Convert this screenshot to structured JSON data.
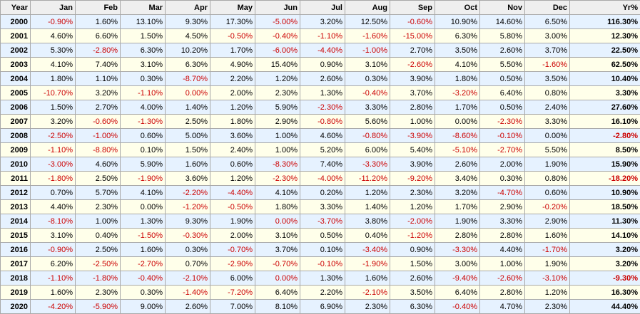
{
  "colors": {
    "negative": "#cc0000",
    "positive": "#000000",
    "row_blue": "#e6f2ff",
    "row_cream": "#ffffea",
    "header": "#efefef"
  },
  "headers": [
    "Year",
    "Jan",
    "Feb",
    "Mar",
    "Apr",
    "May",
    "Jun",
    "Jul",
    "Aug",
    "Sep",
    "Oct",
    "Nov",
    "Dec",
    "Yr%"
  ],
  "rows": [
    {
      "year": "2000",
      "months": [
        "-0.90%",
        "1.60%",
        "13.10%",
        "9.30%",
        "17.30%",
        "-5.00%",
        "3.20%",
        "12.50%",
        "-0.60%",
        "10.90%",
        "14.60%",
        "6.50%"
      ],
      "ytd": "116.30%"
    },
    {
      "year": "2001",
      "months": [
        "4.60%",
        "6.60%",
        "1.50%",
        "4.50%",
        "-0.50%",
        "-0.40%",
        "-1.10%",
        "-1.60%",
        "-15.00%",
        "6.30%",
        "5.80%",
        "3.00%"
      ],
      "ytd": "12.30%"
    },
    {
      "year": "2002",
      "months": [
        "5.30%",
        "-2.80%",
        "6.30%",
        "10.20%",
        "1.70%",
        "-6.00%",
        "-4.40%",
        "-1.00%",
        "2.70%",
        "3.50%",
        "2.60%",
        "3.70%"
      ],
      "ytd": "22.50%"
    },
    {
      "year": "2003",
      "months": [
        "4.10%",
        "7.40%",
        "3.10%",
        "6.30%",
        "4.90%",
        "15.40%",
        "0.90%",
        "3.10%",
        "-2.60%",
        "4.10%",
        "5.50%",
        "-1.60%"
      ],
      "ytd": "62.50%"
    },
    {
      "year": "2004",
      "months": [
        "1.80%",
        "1.10%",
        "0.30%",
        "-8.70%",
        "2.20%",
        "1.20%",
        "2.60%",
        "0.30%",
        "3.90%",
        "1.80%",
        "0.50%",
        "3.50%"
      ],
      "ytd": "10.40%"
    },
    {
      "year": "2005",
      "months": [
        "-10.70%",
        "3.20%",
        "-1.10%",
        "0.00%",
        "2.00%",
        "2.30%",
        "1.30%",
        "-0.40%",
        "3.70%",
        "-3.20%",
        "6.40%",
        "0.80%"
      ],
      "ytd": "3.30%"
    },
    {
      "year": "2006",
      "months": [
        "1.50%",
        "2.70%",
        "4.00%",
        "1.40%",
        "1.20%",
        "5.90%",
        "-2.30%",
        "3.30%",
        "2.80%",
        "1.70%",
        "0.50%",
        "2.40%"
      ],
      "ytd": "27.60%"
    },
    {
      "year": "2007",
      "months": [
        "3.20%",
        "-0.60%",
        "-1.30%",
        "2.50%",
        "1.80%",
        "2.90%",
        "-0.80%",
        "5.60%",
        "1.00%",
        "0.00%",
        "-2.30%",
        "3.30%"
      ],
      "ytd": "16.10%"
    },
    {
      "year": "2008",
      "months": [
        "-2.50%",
        "-1.00%",
        "0.60%",
        "5.00%",
        "3.60%",
        "1.00%",
        "4.60%",
        "-0.80%",
        "-3.90%",
        "-8.60%",
        "-0.10%",
        "0.00%"
      ],
      "ytd": "-2.80%"
    },
    {
      "year": "2009",
      "months": [
        "-1.10%",
        "-8.80%",
        "0.10%",
        "1.50%",
        "2.40%",
        "1.00%",
        "5.20%",
        "6.00%",
        "5.40%",
        "-5.10%",
        "-2.70%",
        "5.50%"
      ],
      "ytd": "8.50%"
    },
    {
      "year": "2010",
      "months": [
        "-3.00%",
        "4.60%",
        "5.90%",
        "1.60%",
        "0.60%",
        "-8.30%",
        "7.40%",
        "-3.30%",
        "3.90%",
        "2.60%",
        "2.00%",
        "1.90%"
      ],
      "ytd": "15.90%"
    },
    {
      "year": "2011",
      "months": [
        "-1.80%",
        "2.50%",
        "-1.90%",
        "3.60%",
        "1.20%",
        "-2.30%",
        "-4.00%",
        "-11.20%",
        "-9.20%",
        "3.40%",
        "0.30%",
        "0.80%"
      ],
      "ytd": "-18.20%"
    },
    {
      "year": "2012",
      "months": [
        "0.70%",
        "5.70%",
        "4.10%",
        "-2.20%",
        "-4.40%",
        "4.10%",
        "0.20%",
        "1.20%",
        "2.30%",
        "3.20%",
        "-4.70%",
        "0.60%"
      ],
      "ytd": "10.90%"
    },
    {
      "year": "2013",
      "months": [
        "4.40%",
        "2.30%",
        "0.00%",
        "-1.20%",
        "-0.50%",
        "1.80%",
        "3.30%",
        "1.40%",
        "1.20%",
        "1.70%",
        "2.90%",
        "-0.20%"
      ],
      "ytd": "18.50%"
    },
    {
      "year": "2014",
      "months": [
        "-8.10%",
        "1.00%",
        "1.30%",
        "9.30%",
        "1.90%",
        "0.00%",
        "-3.70%",
        "3.80%",
        "-2.00%",
        "1.90%",
        "3.30%",
        "2.90%"
      ],
      "ytd": "11.30%"
    },
    {
      "year": "2015",
      "months": [
        "3.10%",
        "0.40%",
        "-1.50%",
        "-0.30%",
        "2.00%",
        "3.10%",
        "0.50%",
        "0.40%",
        "-1.20%",
        "2.80%",
        "2.80%",
        "1.60%"
      ],
      "ytd": "14.10%"
    },
    {
      "year": "2016",
      "months": [
        "-0.90%",
        "2.50%",
        "1.60%",
        "0.30%",
        "-0.70%",
        "3.70%",
        "0.10%",
        "-3.40%",
        "0.90%",
        "-3.30%",
        "4.40%",
        "-1.70%"
      ],
      "ytd": "3.20%"
    },
    {
      "year": "2017",
      "months": [
        "6.20%",
        "-2.50%",
        "-2.70%",
        "0.70%",
        "-2.90%",
        "-0.70%",
        "-0.10%",
        "-1.90%",
        "1.50%",
        "3.00%",
        "1.00%",
        "1.90%"
      ],
      "ytd": "3.20%"
    },
    {
      "year": "2018",
      "months": [
        "-1.10%",
        "-1.80%",
        "-0.40%",
        "-2.10%",
        "6.00%",
        "0.00%",
        "1.30%",
        "1.60%",
        "2.60%",
        "-9.40%",
        "-2.60%",
        "-3.10%"
      ],
      "ytd": "-9.30%"
    },
    {
      "year": "2019",
      "months": [
        "1.60%",
        "2.30%",
        "0.30%",
        "-1.40%",
        "-7.20%",
        "6.40%",
        "2.20%",
        "-2.10%",
        "3.50%",
        "6.40%",
        "2.80%",
        "1.20%"
      ],
      "ytd": "16.30%"
    },
    {
      "year": "2020",
      "months": [
        "-4.20%",
        "-5.90%",
        "9.00%",
        "2.60%",
        "7.00%",
        "8.10%",
        "6.90%",
        "2.30%",
        "6.30%",
        "-0.40%",
        "4.70%",
        "2.30%"
      ],
      "ytd": "44.40%"
    }
  ],
  "red_cells": {
    "2000": [
      1,
      6,
      9
    ],
    "2001": [
      5,
      6,
      7,
      8,
      9
    ],
    "2002": [
      2,
      6,
      7,
      8
    ],
    "2003": [
      9,
      12
    ],
    "2004": [
      4
    ],
    "2005": [
      1,
      3,
      4,
      8,
      10
    ],
    "2006": [
      7
    ],
    "2007": [
      2,
      3,
      7,
      11
    ],
    "2008": [
      1,
      2,
      8,
      9,
      10,
      11,
      13
    ],
    "2009": [
      1,
      2,
      10,
      11
    ],
    "2010": [
      1,
      6,
      8
    ],
    "2011": [
      1,
      3,
      6,
      7,
      8,
      9,
      13
    ],
    "2012": [
      4,
      5,
      11
    ],
    "2013": [
      4,
      5,
      12
    ],
    "2014": [
      1,
      6,
      7,
      9
    ],
    "2015": [
      3,
      4,
      9
    ],
    "2016": [
      1,
      5,
      8,
      10,
      12
    ],
    "2017": [
      2,
      3,
      5,
      6,
      7,
      8
    ],
    "2018": [
      1,
      2,
      3,
      4,
      6,
      10,
      11,
      12,
      13
    ],
    "2019": [
      4,
      5,
      8
    ],
    "2020": [
      1,
      2,
      10
    ]
  }
}
